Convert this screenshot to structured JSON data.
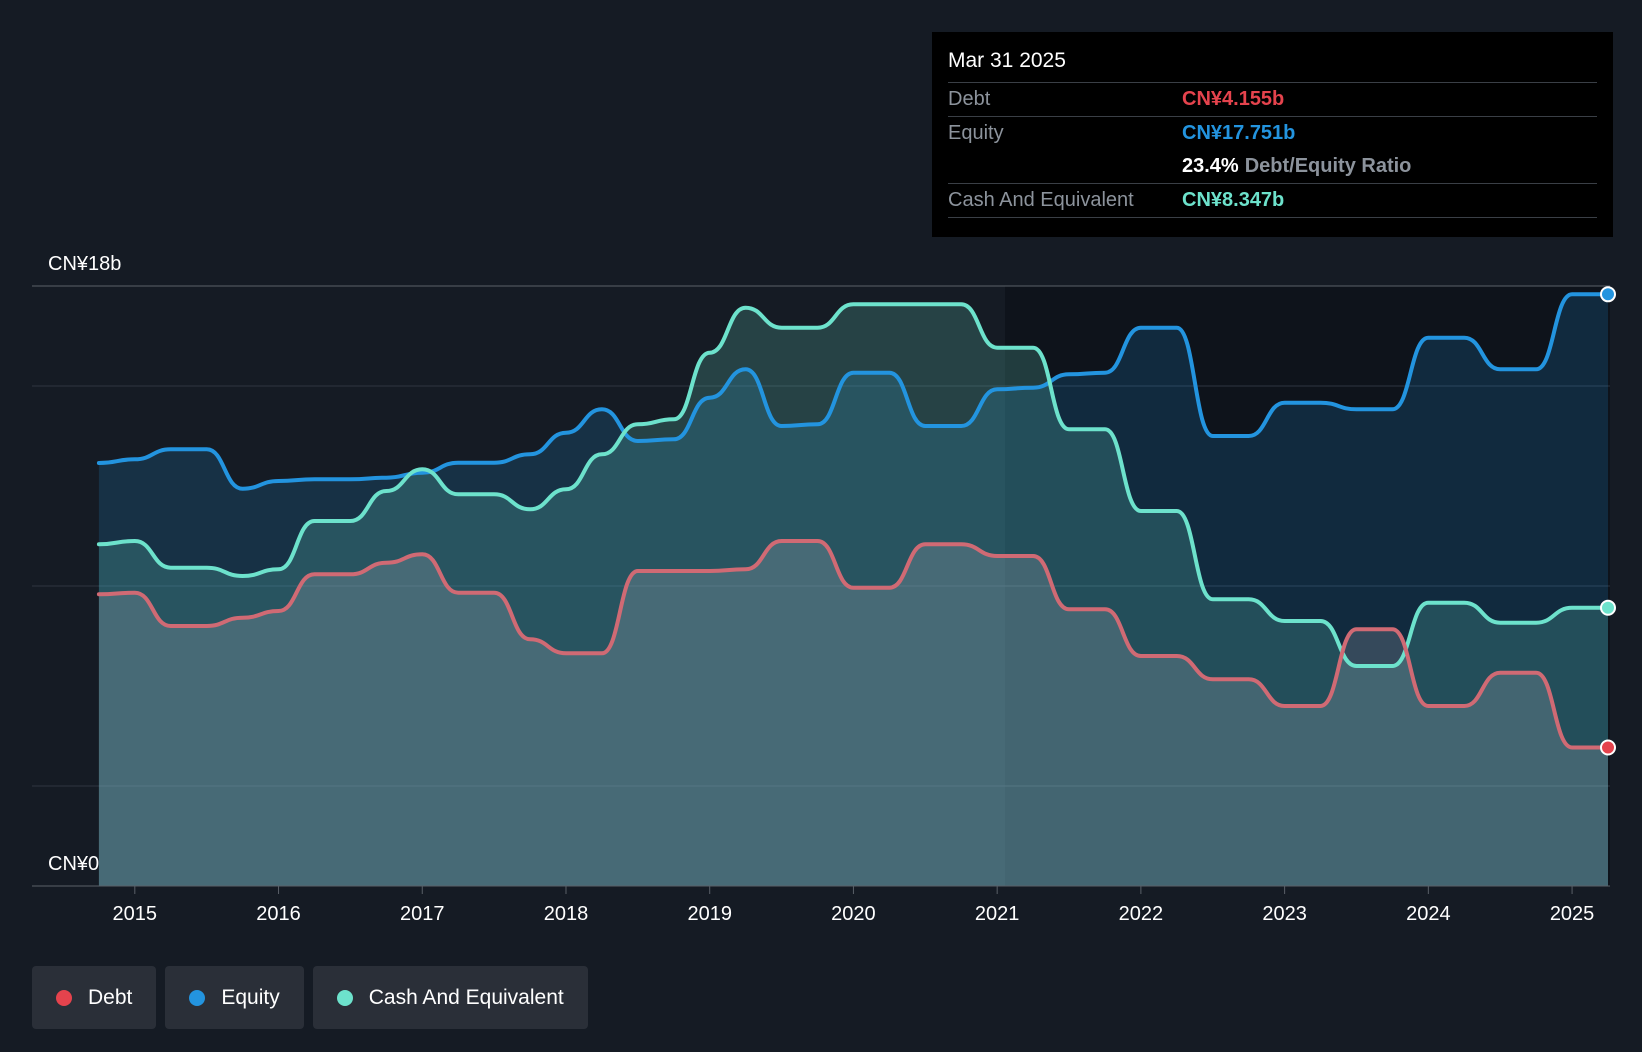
{
  "tooltip": {
    "date": "Mar 31 2025",
    "debt_label": "Debt",
    "debt_value": "CN¥4.155b",
    "equity_label": "Equity",
    "equity_value": "CN¥17.751b",
    "ratio_value": "23.4%",
    "ratio_label": "Debt/Equity Ratio",
    "cash_label": "Cash And Equivalent",
    "cash_value": "CN¥8.347b"
  },
  "legend": {
    "debt": "Debt",
    "equity": "Equity",
    "cash": "Cash And Equivalent"
  },
  "colors": {
    "debt": "#e5434d",
    "equity": "#2394df",
    "cash": "#6de2cc",
    "background": "#151b24"
  },
  "chart_data": {
    "type": "area",
    "y_top_label": "CN¥18b",
    "y_bottom_label": "CN¥0",
    "ylim": [
      0,
      18
    ],
    "xlim": [
      2014.73,
      2025.25
    ],
    "x_ticks": [
      "2015",
      "2016",
      "2017",
      "2018",
      "2019",
      "2020",
      "2021",
      "2022",
      "2023",
      "2024",
      "2025"
    ],
    "grid": true,
    "legend_position": "bottom-left",
    "series": [
      {
        "name": "Equity",
        "x": [
          2014.75,
          2015.0,
          2015.25,
          2015.5,
          2015.75,
          2016.0,
          2016.25,
          2016.5,
          2016.75,
          2017.0,
          2017.25,
          2017.5,
          2017.75,
          2018.0,
          2018.25,
          2018.5,
          2018.75,
          2019.0,
          2019.25,
          2019.5,
          2019.75,
          2020.0,
          2020.25,
          2020.5,
          2020.75,
          2021.0,
          2021.25,
          2021.5,
          2021.75,
          2022.0,
          2022.25,
          2022.5,
          2022.75,
          2023.0,
          2023.25,
          2023.5,
          2023.75,
          2024.0,
          2024.25,
          2024.5,
          2024.75,
          2025.0,
          2025.25
        ],
        "values": [
          12.69,
          12.8,
          13.1,
          13.1,
          11.92,
          12.15,
          12.2,
          12.2,
          12.25,
          12.4,
          12.7,
          12.7,
          12.95,
          13.6,
          14.3,
          13.35,
          13.4,
          14.65,
          15.5,
          13.8,
          13.85,
          15.4,
          15.4,
          13.8,
          13.8,
          14.9,
          14.95,
          15.35,
          15.4,
          16.75,
          16.75,
          13.5,
          13.5,
          14.5,
          14.5,
          14.3,
          14.3,
          16.45,
          16.45,
          15.5,
          15.5,
          17.75,
          17.751
        ]
      },
      {
        "name": "Cash And Equivalent",
        "x": [
          2014.75,
          2015.0,
          2015.25,
          2015.5,
          2015.75,
          2016.0,
          2016.25,
          2016.5,
          2016.75,
          2017.0,
          2017.25,
          2017.5,
          2017.75,
          2018.0,
          2018.25,
          2018.5,
          2018.75,
          2019.0,
          2019.25,
          2019.5,
          2019.75,
          2020.0,
          2020.25,
          2020.5,
          2020.75,
          2021.0,
          2021.25,
          2021.5,
          2021.75,
          2022.0,
          2022.25,
          2022.5,
          2022.75,
          2023.0,
          2023.25,
          2023.5,
          2023.75,
          2024.0,
          2024.25,
          2024.5,
          2024.75,
          2025.0,
          2025.25
        ],
        "values": [
          10.25,
          10.35,
          9.55,
          9.55,
          9.3,
          9.5,
          10.95,
          10.95,
          11.85,
          12.5,
          11.75,
          11.75,
          11.3,
          11.9,
          12.95,
          13.85,
          14.0,
          16.0,
          17.35,
          16.75,
          16.75,
          17.45,
          17.45,
          17.45,
          17.45,
          16.15,
          16.15,
          13.7,
          13.7,
          11.25,
          11.25,
          8.6,
          8.6,
          7.95,
          7.95,
          6.6,
          6.6,
          8.5,
          8.5,
          7.9,
          7.9,
          8.347,
          8.347
        ]
      },
      {
        "name": "Debt",
        "x": [
          2014.75,
          2015.0,
          2015.25,
          2015.5,
          2015.75,
          2016.0,
          2016.25,
          2016.5,
          2016.75,
          2017.0,
          2017.25,
          2017.5,
          2017.75,
          2018.0,
          2018.25,
          2018.5,
          2018.75,
          2019.0,
          2019.25,
          2019.5,
          2019.75,
          2020.0,
          2020.25,
          2020.5,
          2020.75,
          2021.0,
          2021.25,
          2021.5,
          2021.75,
          2022.0,
          2022.25,
          2022.5,
          2022.75,
          2023.0,
          2023.25,
          2023.5,
          2023.75,
          2024.0,
          2024.25,
          2024.5,
          2024.75,
          2025.0,
          2025.25
        ],
        "values": [
          8.75,
          8.8,
          7.8,
          7.8,
          8.05,
          8.25,
          9.35,
          9.35,
          9.7,
          9.95,
          8.8,
          8.8,
          7.4,
          6.98,
          6.98,
          9.45,
          9.45,
          9.45,
          9.5,
          10.35,
          10.35,
          8.95,
          8.95,
          10.25,
          10.25,
          9.9,
          9.9,
          8.3,
          8.3,
          6.9,
          6.9,
          6.2,
          6.2,
          5.4,
          5.4,
          7.7,
          7.7,
          5.4,
          5.4,
          6.4,
          6.4,
          4.155,
          4.155
        ]
      }
    ]
  }
}
